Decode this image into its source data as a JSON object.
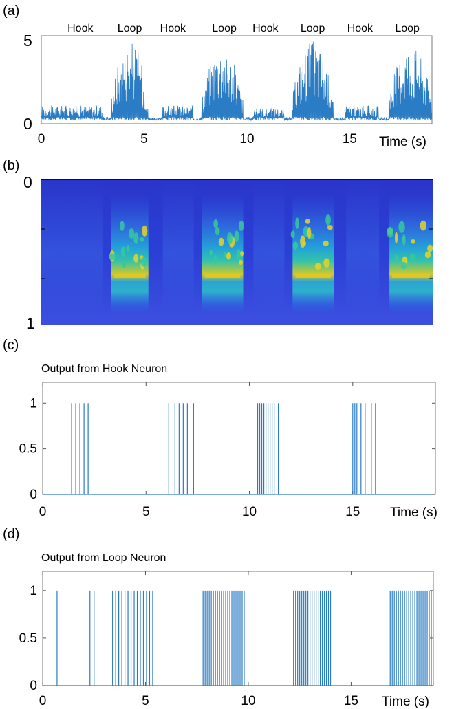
{
  "panels": {
    "a": {
      "label": "(a)"
    },
    "b": {
      "label": "(b)"
    },
    "c": {
      "label": "(c)",
      "title": "Output from Hook Neuron"
    },
    "d": {
      "label": "(d)",
      "title": "Output from Loop Neuron"
    }
  },
  "colors": {
    "line": "#2a7cc4",
    "frame": "#7a7a7a"
  },
  "chart_data": [
    {
      "type": "line",
      "panel": "a",
      "title": "",
      "xlabel": "Time (s)",
      "ylabel": "",
      "xlim": [
        0,
        19
      ],
      "ylim": [
        0,
        5
      ],
      "x_ticks": [
        "0",
        "5",
        "10",
        "15"
      ],
      "y_ticks": [
        "0",
        "5"
      ],
      "segment_labels": [
        {
          "text": "Hook",
          "x": 1.9
        },
        {
          "text": "Loop",
          "x": 4.3
        },
        {
          "text": "Hook",
          "x": 6.4
        },
        {
          "text": "Loop",
          "x": 8.9
        },
        {
          "text": "Hook",
          "x": 10.9
        },
        {
          "text": "Loop",
          "x": 13.2
        },
        {
          "text": "Hook",
          "x": 15.5
        },
        {
          "text": "Loop",
          "x": 17.8
        }
      ],
      "segments": [
        {
          "name": "Hook",
          "start": 0.0,
          "end": 3.0,
          "peak": 1.2
        },
        {
          "name": "Loop",
          "start": 3.4,
          "end": 5.2,
          "peak": 5.0
        },
        {
          "name": "Hook",
          "start": 5.9,
          "end": 7.4,
          "peak": 1.2
        },
        {
          "name": "Loop",
          "start": 7.8,
          "end": 9.8,
          "peak": 4.7
        },
        {
          "name": "Hook",
          "start": 10.3,
          "end": 11.8,
          "peak": 1.0
        },
        {
          "name": "Loop",
          "start": 12.2,
          "end": 14.2,
          "peak": 5.0
        },
        {
          "name": "Hook",
          "start": 14.8,
          "end": 16.4,
          "peak": 1.2
        },
        {
          "name": "Loop",
          "start": 16.9,
          "end": 19.0,
          "peak": 4.8
        }
      ]
    },
    {
      "type": "heatmap",
      "panel": "b",
      "title": "",
      "xlabel": "",
      "ylabel": "",
      "y_ticks": [
        "0",
        "1"
      ],
      "loop_segments_x": [
        [
          3.4,
          5.2
        ],
        [
          7.8,
          9.8
        ],
        [
          12.2,
          14.2
        ],
        [
          16.9,
          19.0
        ]
      ],
      "hook_segments_x": [
        [
          0.0,
          3.0
        ],
        [
          5.9,
          7.4
        ],
        [
          10.3,
          11.8
        ],
        [
          14.8,
          16.4
        ]
      ]
    },
    {
      "type": "line",
      "panel": "c",
      "title": "Output from Hook Neuron",
      "xlabel": "Time (s)",
      "xlim": [
        0,
        19
      ],
      "ylim": [
        0,
        1.1
      ],
      "x_ticks": [
        "0",
        "5",
        "10",
        "15"
      ],
      "y_ticks": [
        "0",
        "0.5",
        "1"
      ],
      "spike_times": [
        1.4,
        1.6,
        1.8,
        2.0,
        2.2,
        6.1,
        6.4,
        6.6,
        6.8,
        7.0,
        7.3,
        10.4,
        10.5,
        10.6,
        10.7,
        10.8,
        10.9,
        11.0,
        11.1,
        11.2,
        11.4,
        15.0,
        15.1,
        15.2,
        15.4,
        15.6,
        15.9,
        16.1
      ]
    },
    {
      "type": "line",
      "panel": "d",
      "title": "Output from Loop Neuron",
      "xlabel": "Time (s)",
      "xlim": [
        0,
        19
      ],
      "ylim": [
        0,
        1.1
      ],
      "x_ticks": [
        "0",
        "5",
        "10",
        "15"
      ],
      "y_ticks": [
        "0",
        "0.5",
        "1"
      ],
      "spike_times": [
        0.7,
        2.3,
        2.5,
        3.4,
        3.55,
        3.7,
        3.85,
        4.0,
        4.15,
        4.3,
        4.45,
        4.6,
        4.75,
        4.9,
        5.05,
        5.2,
        5.35,
        7.8,
        7.9,
        8.0,
        8.1,
        8.2,
        8.3,
        8.4,
        8.5,
        8.6,
        8.7,
        8.8,
        8.9,
        9.0,
        9.1,
        9.2,
        9.3,
        9.4,
        9.5,
        9.6,
        9.7,
        9.8,
        12.2,
        12.3,
        12.4,
        12.5,
        12.6,
        12.7,
        12.8,
        12.9,
        13.0,
        13.1,
        13.2,
        13.3,
        13.4,
        13.5,
        13.6,
        13.7,
        13.8,
        13.9,
        14.0,
        16.9,
        17.0,
        17.1,
        17.2,
        17.3,
        17.4,
        17.5,
        17.6,
        17.7,
        17.8,
        17.9,
        18.0,
        18.1,
        18.2,
        18.3,
        18.4,
        18.5,
        18.6,
        18.7,
        18.8,
        18.9
      ]
    }
  ]
}
